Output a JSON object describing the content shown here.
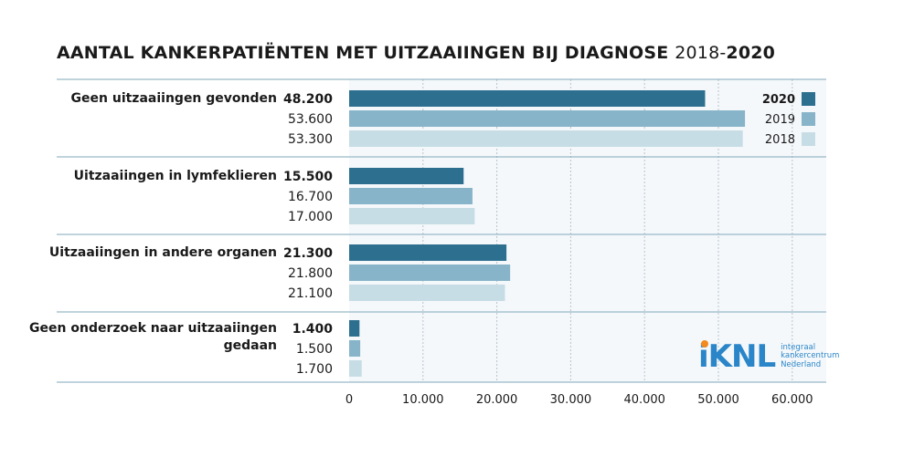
{
  "title": {
    "main": "AANTAL KANKERPATIËNTEN MET UITZAAIINGEN BIJ DIAGNOSE ",
    "range_start": "2018-",
    "range_end": "2020"
  },
  "colors": {
    "2020": "#2d6f8e",
    "2019": "#87b4c8",
    "2018": "#c6dde6",
    "panel_bg": "#f5f8fb",
    "separator": "#7fa7b9",
    "grid": "#b7c4cb"
  },
  "logo": {
    "mark": "iKNL",
    "lines": [
      "integraal",
      "kankercentrum",
      "Nederland"
    ]
  },
  "chart_data": {
    "type": "bar",
    "orientation": "horizontal",
    "title": "AANTAL KANKERPATIËNTEN MET UITZAAIINGEN BIJ DIAGNOSE 2018-2020",
    "categories": [
      "Geen uitzaaiingen gevonden",
      "Uitzaaiingen in lymfeklieren",
      "Uitzaaiingen in andere organen",
      "Geen onderzoek naar uitzaaiingen gedaan"
    ],
    "category_lines": [
      [
        "Geen uitzaaiingen gevonden"
      ],
      [
        "Uitzaaiingen in lymfeklieren"
      ],
      [
        "Uitzaaiingen in andere organen"
      ],
      [
        "Geen onderzoek naar uitzaaiingen",
        "gedaan"
      ]
    ],
    "series": [
      {
        "name": "2020",
        "values": [
          48200,
          15500,
          21300,
          1400
        ],
        "labels": [
          "48.200",
          "15.500",
          "21.300",
          "1.400"
        ]
      },
      {
        "name": "2019",
        "values": [
          53600,
          16700,
          21800,
          1500
        ],
        "labels": [
          "53.600",
          "16.700",
          "21.800",
          "1.500"
        ]
      },
      {
        "name": "2018",
        "values": [
          53300,
          17000,
          21100,
          1700
        ],
        "labels": [
          "53.300",
          "17.000",
          "21.100",
          "1.700"
        ]
      }
    ],
    "xlim": [
      0,
      64000
    ],
    "xticks": [
      0,
      10000,
      20000,
      30000,
      40000,
      50000,
      60000
    ],
    "xtick_labels": [
      "0",
      "10.000",
      "20.000",
      "30.000",
      "40.000",
      "50.000",
      "60.000"
    ],
    "grid": true,
    "legend": {
      "placement": "top-right",
      "entries": [
        "2020",
        "2019",
        "2018"
      ]
    }
  }
}
